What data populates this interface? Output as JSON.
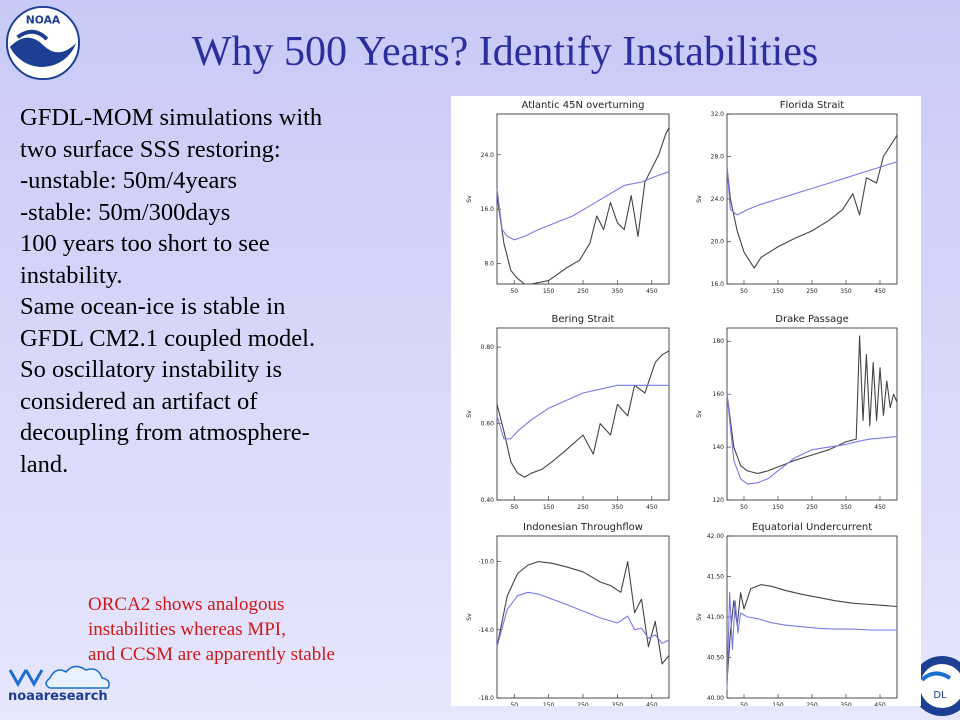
{
  "slide": {
    "title": "Why 500 Years? Identify Instabilities",
    "body_lines": [
      "GFDL-MOM simulations  with",
      "two surface SSS restoring:",
      "-unstable:  50m/4years",
      "-stable: 50m/300days",
      "100 years too short to see",
      "instability.",
      "Same ocean-ice is stable in",
      "GFDL CM2.1 coupled model.",
      "So oscillatory instability is",
      "considered an artifact of",
      "decoupling from atmosphere-",
      "land."
    ],
    "note_lines": [
      "ORCA2 shows analogous",
      "instabilities whereas MPI,",
      "and CCSM are apparently stable"
    ],
    "logos": {
      "noaa": "NOAA",
      "noaaresearch": "noaaresearch",
      "gfdl": "DL"
    }
  },
  "colors": {
    "title": "#2b2f9e",
    "note": "#d01818",
    "stable_series": "#7a7ae8",
    "unstable_series": "#444444"
  },
  "chart_data": [
    {
      "type": "line",
      "title": "Atlantic 45N overturning",
      "ylabel": "Sv",
      "xticks": [
        50,
        150,
        250,
        350,
        450
      ],
      "yticks": [
        "8.0",
        "16.0",
        "24.0"
      ],
      "ylim": [
        5,
        30
      ],
      "xlim": [
        0,
        500
      ],
      "series": [
        {
          "name": "",
          "color": "#444444",
          "x": [
            0,
            20,
            40,
            60,
            80,
            100,
            150,
            200,
            240,
            270,
            290,
            310,
            330,
            350,
            370,
            390,
            410,
            430,
            450,
            470,
            490,
            500
          ],
          "y": [
            18,
            11,
            7,
            5.8,
            5,
            5,
            5.5,
            7.3,
            8.5,
            11,
            15,
            13,
            17,
            14,
            13,
            18,
            12,
            20,
            22,
            24,
            27,
            28
          ]
        },
        {
          "name": "",
          "color": "#7a7ae8",
          "x": [
            0,
            15,
            30,
            50,
            80,
            120,
            170,
            220,
            270,
            320,
            370,
            420,
            470,
            500
          ],
          "y": [
            19,
            13,
            12,
            11.5,
            12,
            13,
            14,
            15,
            16.5,
            18,
            19.5,
            20,
            21,
            21.5
          ]
        }
      ]
    },
    {
      "type": "line",
      "title": "Florida Strait",
      "ylabel": "Sv",
      "xticks": [
        50,
        150,
        250,
        350,
        450
      ],
      "yticks": [
        "16.0",
        "20.0",
        "24.0",
        "28.0",
        "32.0"
      ],
      "ylim": [
        16,
        32
      ],
      "xlim": [
        0,
        500
      ],
      "series": [
        {
          "name": "",
          "color": "#444444",
          "x": [
            0,
            10,
            30,
            50,
            80,
            100,
            150,
            200,
            250,
            300,
            340,
            370,
            390,
            410,
            440,
            460,
            480,
            500
          ],
          "y": [
            27,
            24,
            21,
            19,
            17.5,
            18.5,
            19.5,
            20.3,
            21,
            22,
            23,
            24.5,
            22.5,
            26,
            25.5,
            28,
            29,
            30
          ]
        },
        {
          "name": "",
          "color": "#7a7ae8",
          "x": [
            0,
            10,
            30,
            60,
            100,
            150,
            200,
            250,
            300,
            350,
            400,
            450,
            480,
            500
          ],
          "y": [
            27,
            23,
            22.5,
            23,
            23.5,
            24,
            24.5,
            25,
            25.5,
            26,
            26.5,
            27,
            27.3,
            27.5
          ]
        }
      ]
    },
    {
      "type": "line",
      "title": "Bering Strait",
      "ylabel": "Sv",
      "xticks": [
        50,
        150,
        250,
        350,
        450
      ],
      "yticks": [
        "0.40",
        "0.60",
        "0.80"
      ],
      "ylim": [
        0.4,
        0.85
      ],
      "xlim": [
        0,
        500
      ],
      "series": [
        {
          "name": "",
          "color": "#444444",
          "x": [
            0,
            20,
            40,
            60,
            80,
            100,
            130,
            160,
            200,
            250,
            280,
            300,
            330,
            350,
            380,
            400,
            430,
            460,
            480,
            500
          ],
          "y": [
            0.65,
            0.58,
            0.5,
            0.47,
            0.46,
            0.47,
            0.48,
            0.5,
            0.53,
            0.57,
            0.52,
            0.6,
            0.57,
            0.65,
            0.62,
            0.7,
            0.68,
            0.76,
            0.78,
            0.79
          ]
        },
        {
          "name": "",
          "color": "#7a7ae8",
          "x": [
            0,
            20,
            40,
            60,
            100,
            150,
            200,
            250,
            300,
            350,
            400,
            450,
            500
          ],
          "y": [
            0.62,
            0.56,
            0.56,
            0.58,
            0.61,
            0.64,
            0.66,
            0.68,
            0.69,
            0.7,
            0.7,
            0.7,
            0.7
          ]
        }
      ]
    },
    {
      "type": "line",
      "title": "Drake Passage",
      "ylabel": "Sv",
      "xticks": [
        50,
        150,
        250,
        350,
        450
      ],
      "yticks": [
        "120",
        "140",
        "160",
        "180"
      ],
      "ylim": [
        120,
        185
      ],
      "xlim": [
        0,
        500
      ],
      "series": [
        {
          "name": "",
          "color": "#444444",
          "x": [
            0,
            20,
            40,
            60,
            90,
            120,
            160,
            200,
            250,
            300,
            350,
            380,
            390,
            400,
            410,
            420,
            430,
            440,
            450,
            460,
            470,
            480,
            490,
            500
          ],
          "y": [
            160,
            140,
            133,
            131,
            130,
            131,
            133,
            135,
            137,
            139,
            142,
            143,
            182,
            150,
            175,
            148,
            172,
            150,
            170,
            152,
            165,
            155,
            160,
            157
          ]
        },
        {
          "name": "",
          "color": "#7a7ae8",
          "x": [
            0,
            20,
            40,
            60,
            90,
            120,
            160,
            200,
            250,
            300,
            350,
            380,
            420,
            460,
            500
          ],
          "y": [
            160,
            135,
            128,
            126,
            126.5,
            128,
            132,
            136,
            139,
            140,
            141,
            142,
            143,
            143.5,
            144
          ]
        }
      ]
    },
    {
      "type": "line",
      "title": "Indonesian Throughflow",
      "ylabel": "Sv",
      "xticks": [
        50,
        150,
        250,
        350,
        450
      ],
      "yticks": [
        "-18.0",
        "-14.0",
        "-10.0"
      ],
      "ylim": [
        -18,
        -8.5
      ],
      "xlim": [
        0,
        500
      ],
      "series": [
        {
          "name": "",
          "color": "#444444",
          "x": [
            0,
            30,
            60,
            90,
            120,
            160,
            200,
            250,
            300,
            330,
            360,
            380,
            400,
            420,
            440,
            460,
            480,
            500
          ],
          "y": [
            -15,
            -12,
            -10.7,
            -10.2,
            -10,
            -10.1,
            -10.3,
            -10.6,
            -11.2,
            -11.4,
            -11.8,
            -10,
            -13,
            -12.2,
            -15,
            -13.5,
            -16,
            -15.5
          ]
        },
        {
          "name": "",
          "color": "#7a7ae8",
          "x": [
            0,
            30,
            60,
            90,
            120,
            160,
            200,
            250,
            300,
            350,
            380,
            400,
            420,
            440,
            460,
            480,
            500
          ],
          "y": [
            -15,
            -12.8,
            -12,
            -11.8,
            -11.9,
            -12.2,
            -12.5,
            -12.9,
            -13.3,
            -13.6,
            -13.2,
            -14,
            -13.9,
            -14.5,
            -14.3,
            -14.8,
            -14.6
          ]
        }
      ]
    },
    {
      "type": "line",
      "title": "Equatorial Undercurrent",
      "ylabel": "Sv",
      "xticks": [
        50,
        150,
        250,
        350,
        450
      ],
      "yticks": [
        "40.00",
        "40.50",
        "41.00",
        "41.50",
        "42.00"
      ],
      "ylim": [
        40,
        42
      ],
      "xlim": [
        0,
        500
      ],
      "series": [
        {
          "name": "",
          "color": "#444444",
          "x": [
            0,
            10,
            20,
            30,
            40,
            50,
            70,
            100,
            130,
            170,
            220,
            270,
            320,
            370,
            400,
            440,
            470,
            500
          ],
          "y": [
            40.2,
            40.8,
            41.2,
            40.9,
            41.3,
            41.1,
            41.35,
            41.4,
            41.38,
            41.33,
            41.28,
            41.24,
            41.2,
            41.17,
            41.16,
            41.15,
            41.14,
            41.13
          ]
        },
        {
          "name": "",
          "color": "#7a7ae8",
          "x": [
            0,
            8,
            16,
            24,
            32,
            40,
            60,
            90,
            130,
            170,
            220,
            270,
            320,
            370,
            420,
            470,
            500
          ],
          "y": [
            40.1,
            41.3,
            40.6,
            41.2,
            40.8,
            41.05,
            41,
            40.98,
            40.93,
            40.9,
            40.88,
            40.86,
            40.85,
            40.85,
            40.84,
            40.84,
            40.84
          ]
        }
      ]
    }
  ]
}
